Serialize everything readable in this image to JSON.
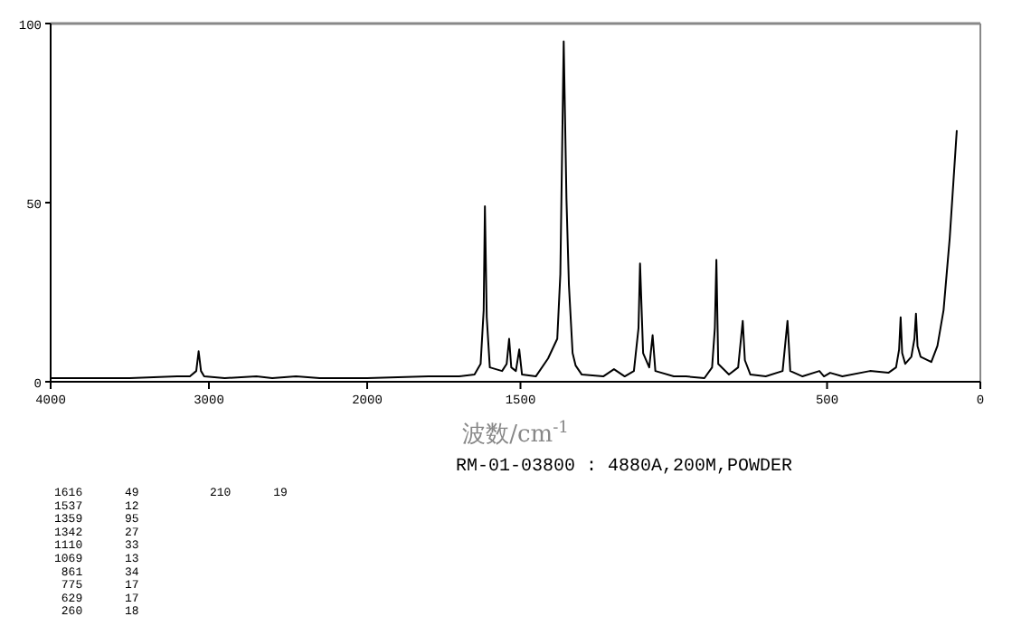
{
  "chart_data": [
    {
      "type": "line",
      "xlim": [
        4000,
        2000
      ],
      "xticks": [
        4000,
        3000,
        2000
      ],
      "ylim": [
        0,
        100
      ],
      "yticks": [
        0,
        50,
        100
      ],
      "series": [
        {
          "color": "#000000",
          "x": [
            4000,
            3500,
            3200,
            3120,
            3080,
            3065,
            3050,
            3030,
            2900,
            2700,
            2600,
            2450,
            2300,
            2000
          ],
          "values": [
            1,
            1,
            1.5,
            1.5,
            3,
            8.5,
            3,
            1.5,
            1,
            1.5,
            1,
            1.5,
            1,
            1
          ]
        }
      ]
    },
    {
      "type": "line",
      "xlabel": "波数/cm$^{-1}$",
      "subtitle": "RM-01-03800 : 4880A,200M,POWDER",
      "xlim": [
        2000,
        0
      ],
      "xticks": [
        1500,
        500,
        0
      ],
      "ylim": [
        0,
        100
      ],
      "tick_labels": "x",
      "series": [
        {
          "color": "#000000",
          "x": [
            2000,
            1800,
            1700,
            1650,
            1630,
            1620,
            1616,
            1610,
            1600,
            1560,
            1545,
            1537,
            1530,
            1515,
            1504,
            1495,
            1450,
            1410,
            1380,
            1370,
            1359,
            1350,
            1342,
            1330,
            1320,
            1300,
            1230,
            1195,
            1160,
            1130,
            1115,
            1110,
            1100,
            1080,
            1069,
            1060,
            1000,
            960,
            900,
            875,
            866,
            861,
            855,
            820,
            790,
            775,
            768,
            750,
            700,
            645,
            629,
            620,
            580,
            525,
            510,
            490,
            450,
            360,
            300,
            275,
            265,
            260,
            255,
            245,
            225,
            215,
            210,
            205,
            195,
            160,
            140,
            120,
            100,
            77
          ],
          "values": [
            1,
            1.5,
            1.5,
            2,
            5,
            20,
            49,
            18,
            4,
            3,
            5,
            12,
            4,
            3,
            9,
            2,
            1.5,
            6.5,
            12,
            30,
            95,
            51,
            27,
            8,
            4.5,
            2,
            1.5,
            3.5,
            1.5,
            3,
            15,
            33,
            8,
            4,
            13,
            3,
            1.5,
            1.5,
            1,
            4,
            15,
            34,
            5,
            2,
            4,
            17,
            6,
            2,
            1.5,
            3,
            17,
            3,
            1.5,
            3,
            1.5,
            2.5,
            1.5,
            3,
            2.5,
            4,
            9,
            18,
            8,
            5,
            7,
            12,
            19,
            10,
            7,
            5.5,
            10,
            20,
            40,
            70
          ]
        }
      ],
      "annotations": [
        "1616      49",
        "1537      12",
        "1359      95",
        "1342      27",
        "1110      33",
        "1069      13",
        " 861      34",
        " 775      17",
        " 629      17",
        " 260      18",
        "210      19"
      ]
    }
  ]
}
